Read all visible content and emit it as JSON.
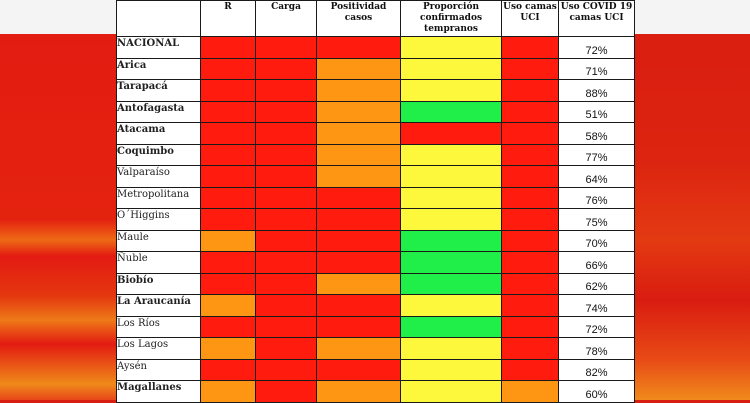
{
  "colors": {
    "red": "#ff1b0e",
    "orange": "#ff9613",
    "yellow": "#fdf83b",
    "green": "#1fef48"
  },
  "table": {
    "headers": [
      "",
      "R",
      "Carga",
      "Positividad casos",
      "Proporción confirmados tempranos",
      "Uso camas UCI",
      "Uso COVID 19 camas UCI"
    ],
    "rows": [
      {
        "region": "NACIONAL",
        "bold": true,
        "cells": [
          "red",
          "red",
          "red",
          "yellow",
          "red"
        ],
        "pct": "72%"
      },
      {
        "region": "Arica",
        "bold": true,
        "cells": [
          "red",
          "red",
          "orange",
          "yellow",
          "red"
        ],
        "pct": "71%"
      },
      {
        "region": "Tarapacá",
        "bold": true,
        "cells": [
          "red",
          "red",
          "orange",
          "yellow",
          "red"
        ],
        "pct": "88%"
      },
      {
        "region": "Antofagasta",
        "bold": true,
        "cells": [
          "red",
          "red",
          "orange",
          "green",
          "red"
        ],
        "pct": "51%"
      },
      {
        "region": "Atacama",
        "bold": true,
        "cells": [
          "red",
          "red",
          "orange",
          "red",
          "red"
        ],
        "pct": "58%"
      },
      {
        "region": "Coquimbo",
        "bold": true,
        "cells": [
          "red",
          "red",
          "orange",
          "yellow",
          "red"
        ],
        "pct": "77%"
      },
      {
        "region": "Valparaíso",
        "bold": false,
        "cells": [
          "red",
          "red",
          "orange",
          "yellow",
          "red"
        ],
        "pct": "64%"
      },
      {
        "region": "Metropolitana",
        "bold": false,
        "cells": [
          "red",
          "red",
          "red",
          "yellow",
          "red"
        ],
        "pct": "76%"
      },
      {
        "region": "O´Higgins",
        "bold": false,
        "cells": [
          "red",
          "red",
          "red",
          "yellow",
          "red"
        ],
        "pct": "75%"
      },
      {
        "region": "Maule",
        "bold": false,
        "cells": [
          "orange",
          "red",
          "red",
          "green",
          "red"
        ],
        "pct": "70%"
      },
      {
        "region": "Ñuble",
        "bold": false,
        "cells": [
          "red",
          "red",
          "red",
          "green",
          "red"
        ],
        "pct": "66%"
      },
      {
        "region": "Biobío",
        "bold": true,
        "cells": [
          "red",
          "red",
          "orange",
          "green",
          "red"
        ],
        "pct": "62%"
      },
      {
        "region": "La Araucanía",
        "bold": true,
        "cells": [
          "orange",
          "red",
          "red",
          "yellow",
          "red"
        ],
        "pct": "74%"
      },
      {
        "region": "Los Ríos",
        "bold": false,
        "cells": [
          "red",
          "red",
          "red",
          "green",
          "red"
        ],
        "pct": "72%"
      },
      {
        "region": "Los Lagos",
        "bold": false,
        "cells": [
          "orange",
          "red",
          "orange",
          "yellow",
          "red"
        ],
        "pct": "78%"
      },
      {
        "region": "Aysén",
        "bold": false,
        "cells": [
          "red",
          "red",
          "red",
          "yellow",
          "red"
        ],
        "pct": "82%"
      },
      {
        "region": "Magallanes",
        "bold": true,
        "cells": [
          "orange",
          "red",
          "orange",
          "yellow",
          "orange"
        ],
        "pct": "60%"
      }
    ]
  }
}
